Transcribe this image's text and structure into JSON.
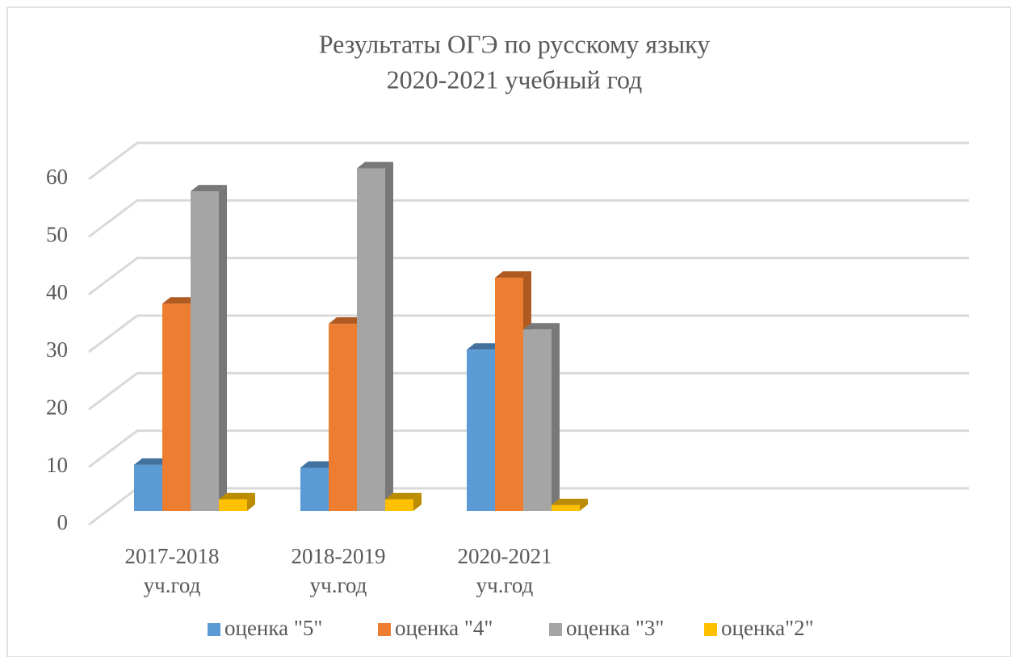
{
  "chart_data": {
    "type": "bar3d",
    "title": "Результаты ОГЭ по русскому языку",
    "subtitle": "2020-2021 учебный год",
    "categories": [
      "2017-2018 уч.год",
      "2018-2019 уч.год",
      "2020-2021 уч.год",
      null,
      null
    ],
    "series": [
      {
        "name": "оценка \"5\"",
        "color": "#5b9bd5",
        "side": "#41719c",
        "values": [
          8,
          7.5,
          28,
          null,
          null
        ]
      },
      {
        "name": "оценка \"4\"",
        "color": "#ed7d31",
        "side": "#ae5a21",
        "values": [
          36,
          32.5,
          40.5,
          null,
          null
        ]
      },
      {
        "name": "оценка \"3\"",
        "color": "#a5a5a5",
        "side": "#787878",
        "values": [
          55.5,
          59.5,
          31.5,
          null,
          null
        ]
      },
      {
        "name": "оценка\"2\"",
        "color": "#ffc000",
        "side": "#bc8c00",
        "values": [
          2,
          2,
          1,
          null,
          null
        ]
      }
    ],
    "ylim": [
      0,
      60
    ],
    "yticks": [
      0,
      10,
      20,
      30,
      40,
      50,
      60
    ],
    "grid": true,
    "legend": "bottom"
  }
}
